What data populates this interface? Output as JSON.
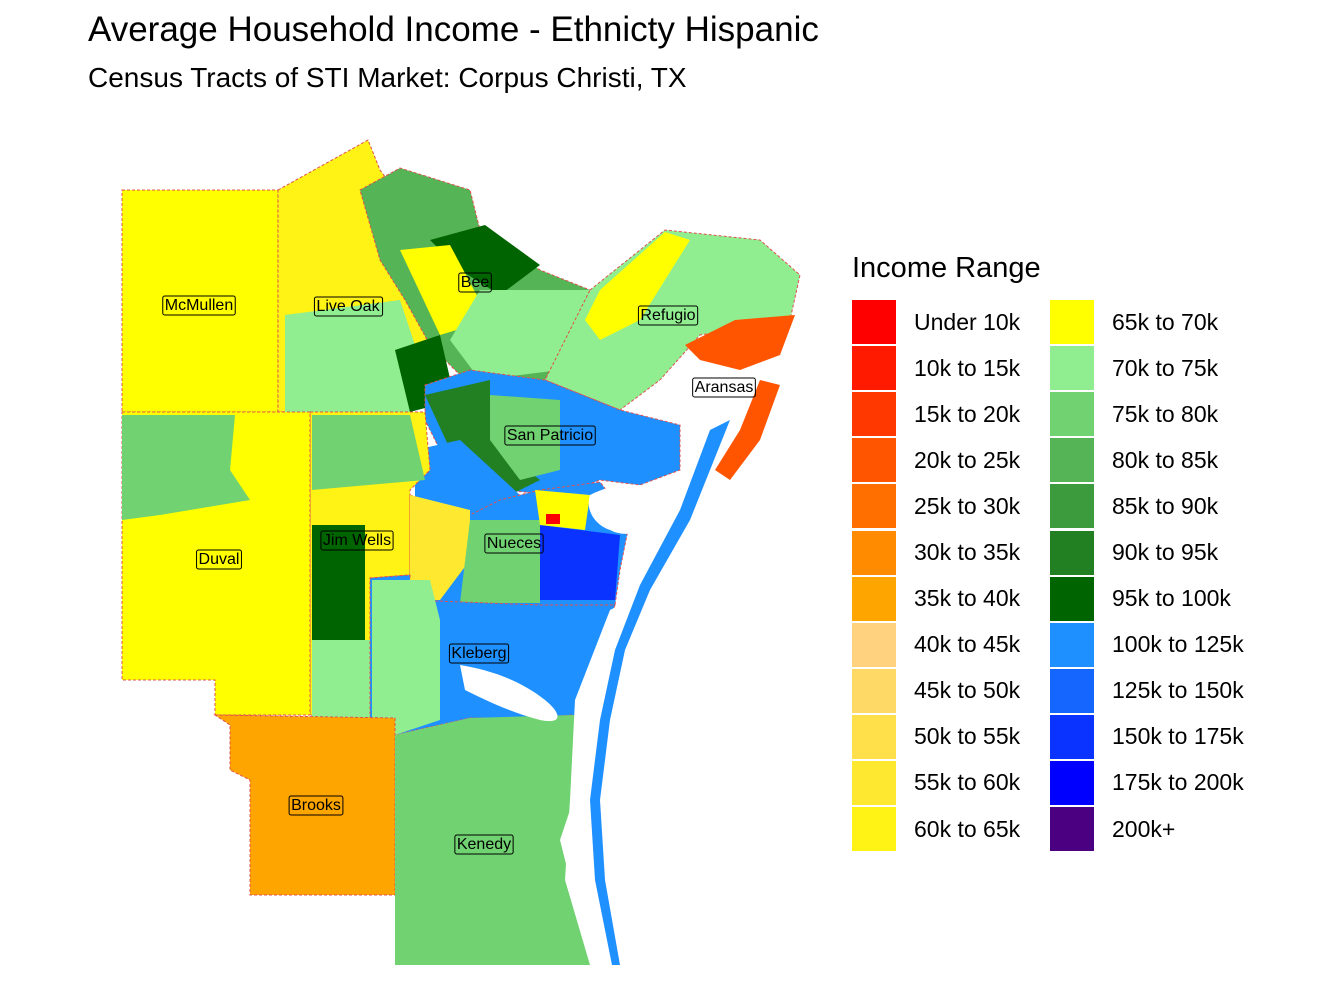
{
  "title": "Average Household Income - Ethnicty Hispanic",
  "subtitle": "Census Tracts of STI Market: Corpus Christi, TX",
  "legend": {
    "title": "Income Range",
    "position": "right",
    "items": [
      {
        "label": "Under 10k",
        "color": "#FF0000"
      },
      {
        "label": "10k to 15k",
        "color": "#FF1A00"
      },
      {
        "label": "15k to 20k",
        "color": "#FF3800"
      },
      {
        "label": "20k to 25k",
        "color": "#FF5500"
      },
      {
        "label": "25k to 30k",
        "color": "#FF6F00"
      },
      {
        "label": "30k to 35k",
        "color": "#FF8C00"
      },
      {
        "label": "35k to 40k",
        "color": "#FFA500"
      },
      {
        "label": "40k to 45k",
        "color": "#FFD27F"
      },
      {
        "label": "45k to 50k",
        "color": "#FFD966"
      },
      {
        "label": "50k to 55k",
        "color": "#FFE04A"
      },
      {
        "label": "55k to 60k",
        "color": "#FFE830"
      },
      {
        "label": "60k to 65k",
        "color": "#FFF215"
      },
      {
        "label": "65k to 70k",
        "color": "#FFFF00"
      },
      {
        "label": "70k to 75k",
        "color": "#90EE90"
      },
      {
        "label": "75k to 80k",
        "color": "#70D270"
      },
      {
        "label": "80k to 85k",
        "color": "#55B455"
      },
      {
        "label": "85k to 90k",
        "color": "#3C9B3C"
      },
      {
        "label": "90k to 95k",
        "color": "#228022"
      },
      {
        "label": "95k to 100k",
        "color": "#006400"
      },
      {
        "label": "100k to 125k",
        "color": "#1E90FF"
      },
      {
        "label": "125k to 150k",
        "color": "#1466FF"
      },
      {
        "label": "150k to 175k",
        "color": "#0A33FF"
      },
      {
        "label": "175k to 200k",
        "color": "#0000FF"
      },
      {
        "label": "200k+",
        "color": "#4B0082"
      }
    ]
  },
  "counties": [
    {
      "name": "McMullen",
      "fill": "#FFFF00"
    },
    {
      "name": "Live Oak",
      "fill": "#FFF215"
    },
    {
      "name": "Bee",
      "fill": "#55B455"
    },
    {
      "name": "Refugio",
      "fill": "#90EE90"
    },
    {
      "name": "Aransas",
      "fill": "#FF5500"
    },
    {
      "name": "San Patricio",
      "fill": "#1E90FF"
    },
    {
      "name": "Jim Wells",
      "fill": "#FFF215"
    },
    {
      "name": "Nueces",
      "fill": "#1E90FF"
    },
    {
      "name": "Duval",
      "fill": "#FFFF00"
    },
    {
      "name": "Kleberg",
      "fill": "#1E90FF"
    },
    {
      "name": "Brooks",
      "fill": "#FFA500"
    },
    {
      "name": "Kenedy",
      "fill": "#70D270"
    }
  ]
}
